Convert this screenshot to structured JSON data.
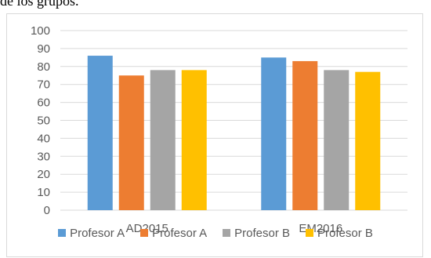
{
  "page": {
    "top_text": "de los grupos."
  },
  "chart_data": {
    "type": "bar",
    "categories": [
      "AD2015",
      "EM2016"
    ],
    "series": [
      {
        "name": "Profesor A",
        "color": "#5b9bd5",
        "values": [
          86,
          85
        ]
      },
      {
        "name": "Profesor A",
        "color": "#ed7d31",
        "values": [
          75,
          83
        ]
      },
      {
        "name": "Profesor B",
        "color": "#a5a5a5",
        "values": [
          78,
          78
        ]
      },
      {
        "name": "Profesor B",
        "color": "#ffc000",
        "values": [
          78,
          77
        ]
      }
    ],
    "ylim": [
      0,
      100
    ],
    "yticks": [
      0,
      10,
      20,
      30,
      40,
      50,
      60,
      70,
      80,
      90,
      100
    ],
    "grid": true,
    "legend_position": "bottom",
    "gridline_color": "#d9d9d9",
    "axis_color": "#d9d9d9"
  }
}
